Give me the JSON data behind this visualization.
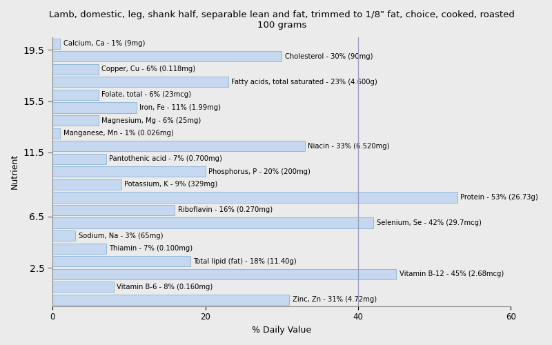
{
  "title": "Lamb, domestic, leg, shank half, separable lean and fat, trimmed to 1/8\" fat, choice, cooked, roasted\n100 grams",
  "xlabel": "% Daily Value",
  "ylabel": "Nutrient",
  "xlim": [
    0,
    60
  ],
  "xticks": [
    0,
    20,
    40,
    60
  ],
  "background_color": "#ebebeb",
  "bar_color": "#c5d8f0",
  "bar_edge_color": "#7aaad0",
  "vline_color": "#9999bb",
  "vline_x": 40,
  "nutrients": [
    {
      "label": "Calcium, Ca - 1% (9mg)",
      "value": 1
    },
    {
      "label": "Cholesterol - 30% (90mg)",
      "value": 30
    },
    {
      "label": "Copper, Cu - 6% (0.118mg)",
      "value": 6
    },
    {
      "label": "Fatty acids, total saturated - 23% (4.600g)",
      "value": 23
    },
    {
      "label": "Folate, total - 6% (23mcg)",
      "value": 6
    },
    {
      "label": "Iron, Fe - 11% (1.99mg)",
      "value": 11
    },
    {
      "label": "Magnesium, Mg - 6% (25mg)",
      "value": 6
    },
    {
      "label": "Manganese, Mn - 1% (0.026mg)",
      "value": 1
    },
    {
      "label": "Niacin - 33% (6.520mg)",
      "value": 33
    },
    {
      "label": "Pantothenic acid - 7% (0.700mg)",
      "value": 7
    },
    {
      "label": "Phosphorus, P - 20% (200mg)",
      "value": 20
    },
    {
      "label": "Potassium, K - 9% (329mg)",
      "value": 9
    },
    {
      "label": "Protein - 53% (26.73g)",
      "value": 53
    },
    {
      "label": "Riboflavin - 16% (0.270mg)",
      "value": 16
    },
    {
      "label": "Selenium, Se - 42% (29.7mcg)",
      "value": 42
    },
    {
      "label": "Sodium, Na - 3% (65mg)",
      "value": 3
    },
    {
      "label": "Thiamin - 7% (0.100mg)",
      "value": 7
    },
    {
      "label": "Total lipid (fat) - 18% (11.40g)",
      "value": 18
    },
    {
      "label": "Vitamin B-12 - 45% (2.68mcg)",
      "value": 45
    },
    {
      "label": "Vitamin B-6 - 8% (0.160mg)",
      "value": 8
    },
    {
      "label": "Zinc, Zn - 31% (4.72mg)",
      "value": 31
    }
  ],
  "label_fontsize": 7.2,
  "title_fontsize": 9.5,
  "axis_label_fontsize": 9,
  "tick_fontsize": 8.5
}
